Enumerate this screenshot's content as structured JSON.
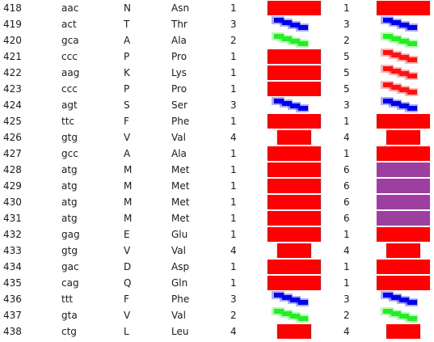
{
  "colors": {
    "red": "#ff0000",
    "purple": "#9c3fa0",
    "blue": "#0000ee",
    "green": "#22ee22",
    "red_stripe": "#ff1111"
  },
  "rows": [
    {
      "pos": "418",
      "codon": "aac",
      "aa1": "N",
      "aa3": "Asn",
      "n1": "1",
      "g1": "bar-full-red",
      "n2": "1",
      "g2": "bar-full-red"
    },
    {
      "pos": "419",
      "codon": "act",
      "aa1": "T",
      "aa3": "Thr",
      "n1": "3",
      "g1": "stairs-blue",
      "n2": "3",
      "g2": "stairs-blue"
    },
    {
      "pos": "420",
      "codon": "gca",
      "aa1": "A",
      "aa3": "Ala",
      "n1": "2",
      "g1": "stairs-green",
      "n2": "2",
      "g2": "stairs-green"
    },
    {
      "pos": "421",
      "codon": "ccc",
      "aa1": "P",
      "aa3": "Pro",
      "n1": "1",
      "g1": "bar-full-red",
      "n2": "5",
      "g2": "stairs-red"
    },
    {
      "pos": "422",
      "codon": "aag",
      "aa1": "K",
      "aa3": "Lys",
      "n1": "1",
      "g1": "bar-full-red",
      "n2": "5",
      "g2": "stairs-red"
    },
    {
      "pos": "423",
      "codon": "ccc",
      "aa1": "P",
      "aa3": "Pro",
      "n1": "1",
      "g1": "bar-full-red",
      "n2": "5",
      "g2": "stairs-red"
    },
    {
      "pos": "424",
      "codon": "agt",
      "aa1": "S",
      "aa3": "Ser",
      "n1": "3",
      "g1": "stairs-blue",
      "n2": "3",
      "g2": "stairs-blue"
    },
    {
      "pos": "425",
      "codon": "ttc",
      "aa1": "F",
      "aa3": "Phe",
      "n1": "1",
      "g1": "bar-full-red",
      "n2": "1",
      "g2": "bar-full-red"
    },
    {
      "pos": "426",
      "codon": "gtg",
      "aa1": "V",
      "aa3": "Val",
      "n1": "4",
      "g1": "bar-short-red",
      "n2": "4",
      "g2": "bar-short-red"
    },
    {
      "pos": "427",
      "codon": "gcc",
      "aa1": "A",
      "aa3": "Ala",
      "n1": "1",
      "g1": "bar-full-red",
      "n2": "1",
      "g2": "bar-full-red"
    },
    {
      "pos": "428",
      "codon": "atg",
      "aa1": "M",
      "aa3": "Met",
      "n1": "1",
      "g1": "bar-full-red",
      "n2": "6",
      "g2": "bar-full-purple"
    },
    {
      "pos": "429",
      "codon": "atg",
      "aa1": "M",
      "aa3": "Met",
      "n1": "1",
      "g1": "bar-full-red",
      "n2": "6",
      "g2": "bar-full-purple"
    },
    {
      "pos": "430",
      "codon": "atg",
      "aa1": "M",
      "aa3": "Met",
      "n1": "1",
      "g1": "bar-full-red",
      "n2": "6",
      "g2": "bar-full-purple"
    },
    {
      "pos": "431",
      "codon": "atg",
      "aa1": "M",
      "aa3": "Met",
      "n1": "1",
      "g1": "bar-full-red",
      "n2": "6",
      "g2": "bar-full-purple"
    },
    {
      "pos": "432",
      "codon": "gag",
      "aa1": "E",
      "aa3": "Glu",
      "n1": "1",
      "g1": "bar-full-red",
      "n2": "1",
      "g2": "bar-full-red"
    },
    {
      "pos": "433",
      "codon": "gtg",
      "aa1": "V",
      "aa3": "Val",
      "n1": "4",
      "g1": "bar-short-red",
      "n2": "4",
      "g2": "bar-short-red"
    },
    {
      "pos": "434",
      "codon": "gac",
      "aa1": "D",
      "aa3": "Asp",
      "n1": "1",
      "g1": "bar-full-red",
      "n2": "1",
      "g2": "bar-full-red"
    },
    {
      "pos": "435",
      "codon": "cag",
      "aa1": "Q",
      "aa3": "Gln",
      "n1": "1",
      "g1": "bar-full-red",
      "n2": "1",
      "g2": "bar-full-red"
    },
    {
      "pos": "436",
      "codon": "ttt",
      "aa1": "F",
      "aa3": "Phe",
      "n1": "3",
      "g1": "stairs-blue",
      "n2": "3",
      "g2": "stairs-blue"
    },
    {
      "pos": "437",
      "codon": "gta",
      "aa1": "V",
      "aa3": "Val",
      "n1": "2",
      "g1": "stairs-green",
      "n2": "2",
      "g2": "stairs-green"
    },
    {
      "pos": "438",
      "codon": "ctg",
      "aa1": "L",
      "aa3": "Leu",
      "n1": "4",
      "g1": "bar-short-red",
      "n2": "4",
      "g2": "bar-short-red"
    }
  ]
}
